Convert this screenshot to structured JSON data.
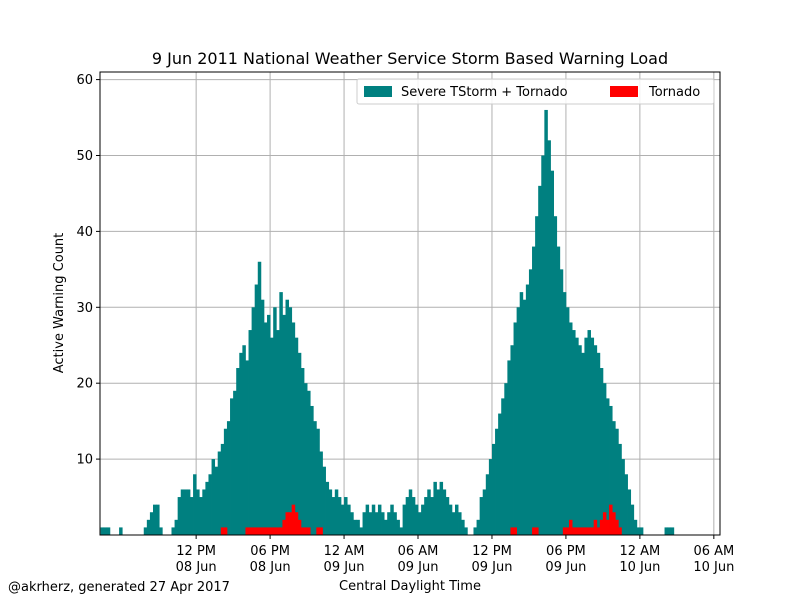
{
  "footer": "@akrherz, generated 27 Apr 2017",
  "colors": {
    "severe": "#008080",
    "tornado": "#ff0000",
    "grid": "#b0b0b0"
  },
  "chart_data": {
    "type": "bar",
    "title": "9 Jun 2011 National Weather Service Storm Based Warning Load",
    "xlabel": "Central Daylight Time",
    "ylabel": "Active Warning Count",
    "x_unit": "hours since 8 Jun 2011 00:00 CDT",
    "xlim": [
      4.2,
      54.5
    ],
    "ylim": [
      0,
      61
    ],
    "yticks": [
      10,
      20,
      30,
      40,
      50,
      60
    ],
    "xticks": [
      {
        "x": 12,
        "line1": "12 PM",
        "line2": "08 Jun"
      },
      {
        "x": 18,
        "line1": "06 PM",
        "line2": "08 Jun"
      },
      {
        "x": 24,
        "line1": "12 AM",
        "line2": "09 Jun"
      },
      {
        "x": 30,
        "line1": "06 AM",
        "line2": "09 Jun"
      },
      {
        "x": 36,
        "line1": "12 PM",
        "line2": "09 Jun"
      },
      {
        "x": 42,
        "line1": "06 PM",
        "line2": "09 Jun"
      },
      {
        "x": 48,
        "line1": "12 AM",
        "line2": "10 Jun"
      },
      {
        "x": 54,
        "line1": "06 AM",
        "line2": "10 Jun"
      }
    ],
    "grid": true,
    "legend_position": "top-right",
    "bin_hours": 0.25,
    "series": [
      {
        "name": "Severe TStorm + Tornado",
        "color": "#008080",
        "points": [
          [
            4.25,
            1
          ],
          [
            4.5,
            1
          ],
          [
            4.75,
            1
          ],
          [
            5.75,
            1
          ],
          [
            7.75,
            1
          ],
          [
            8.0,
            2
          ],
          [
            8.25,
            3
          ],
          [
            8.5,
            4
          ],
          [
            8.75,
            4
          ],
          [
            9.0,
            1
          ],
          [
            10.0,
            1
          ],
          [
            10.25,
            2
          ],
          [
            10.5,
            5
          ],
          [
            10.75,
            6
          ],
          [
            11.0,
            6
          ],
          [
            11.25,
            6
          ],
          [
            11.5,
            5
          ],
          [
            11.75,
            8
          ],
          [
            12.0,
            6
          ],
          [
            12.25,
            5
          ],
          [
            12.5,
            6
          ],
          [
            12.75,
            7
          ],
          [
            13.0,
            8
          ],
          [
            13.25,
            10
          ],
          [
            13.5,
            9
          ],
          [
            13.75,
            11
          ],
          [
            14.0,
            12
          ],
          [
            14.25,
            14
          ],
          [
            14.5,
            15
          ],
          [
            14.75,
            18
          ],
          [
            15.0,
            19
          ],
          [
            15.25,
            22
          ],
          [
            15.5,
            24
          ],
          [
            15.75,
            25
          ],
          [
            16.0,
            23
          ],
          [
            16.25,
            27
          ],
          [
            16.5,
            30
          ],
          [
            16.75,
            33
          ],
          [
            17.0,
            36
          ],
          [
            17.25,
            31
          ],
          [
            17.5,
            28
          ],
          [
            17.75,
            29
          ],
          [
            18.0,
            26
          ],
          [
            18.25,
            30
          ],
          [
            18.5,
            27
          ],
          [
            18.75,
            32
          ],
          [
            19.0,
            29
          ],
          [
            19.25,
            31
          ],
          [
            19.5,
            30
          ],
          [
            19.75,
            28
          ],
          [
            20.0,
            26
          ],
          [
            20.25,
            24
          ],
          [
            20.5,
            22
          ],
          [
            20.75,
            20
          ],
          [
            21.0,
            19
          ],
          [
            21.25,
            17
          ],
          [
            21.5,
            15
          ],
          [
            21.75,
            14
          ],
          [
            22.0,
            11
          ],
          [
            22.25,
            9
          ],
          [
            22.5,
            7
          ],
          [
            22.75,
            6
          ],
          [
            23.0,
            5
          ],
          [
            23.25,
            6
          ],
          [
            23.5,
            5
          ],
          [
            23.75,
            4
          ],
          [
            24.0,
            5
          ],
          [
            24.25,
            4
          ],
          [
            24.5,
            3
          ],
          [
            24.75,
            2
          ],
          [
            25.0,
            2
          ],
          [
            25.25,
            1
          ],
          [
            25.5,
            3
          ],
          [
            25.75,
            4
          ],
          [
            26.0,
            3
          ],
          [
            26.25,
            4
          ],
          [
            26.5,
            3
          ],
          [
            26.75,
            4
          ],
          [
            27.0,
            3
          ],
          [
            27.25,
            2
          ],
          [
            27.5,
            3
          ],
          [
            27.75,
            4
          ],
          [
            28.0,
            3
          ],
          [
            28.25,
            2
          ],
          [
            28.5,
            1
          ],
          [
            28.75,
            4
          ],
          [
            29.0,
            5
          ],
          [
            29.25,
            6
          ],
          [
            29.5,
            5
          ],
          [
            29.75,
            4
          ],
          [
            30.0,
            3
          ],
          [
            30.25,
            4
          ],
          [
            30.5,
            5
          ],
          [
            30.75,
            6
          ],
          [
            31.0,
            5
          ],
          [
            31.25,
            7
          ],
          [
            31.5,
            6
          ],
          [
            31.75,
            7
          ],
          [
            32.0,
            6
          ],
          [
            32.25,
            5
          ],
          [
            32.5,
            4
          ],
          [
            32.75,
            3
          ],
          [
            33.0,
            4
          ],
          [
            33.25,
            3
          ],
          [
            33.5,
            2
          ],
          [
            33.75,
            1
          ],
          [
            34.5,
            1
          ],
          [
            34.75,
            2
          ],
          [
            35.0,
            5
          ],
          [
            35.25,
            6
          ],
          [
            35.5,
            8
          ],
          [
            35.75,
            10
          ],
          [
            36.0,
            12
          ],
          [
            36.25,
            14
          ],
          [
            36.5,
            16
          ],
          [
            36.75,
            18
          ],
          [
            37.0,
            20
          ],
          [
            37.25,
            23
          ],
          [
            37.5,
            25
          ],
          [
            37.75,
            28
          ],
          [
            38.0,
            30
          ],
          [
            38.25,
            32
          ],
          [
            38.5,
            31
          ],
          [
            38.75,
            33
          ],
          [
            39.0,
            35
          ],
          [
            39.25,
            38
          ],
          [
            39.5,
            42
          ],
          [
            39.75,
            46
          ],
          [
            40.0,
            50
          ],
          [
            40.25,
            56
          ],
          [
            40.5,
            52
          ],
          [
            40.75,
            48
          ],
          [
            41.0,
            42
          ],
          [
            41.25,
            38
          ],
          [
            41.5,
            35
          ],
          [
            41.75,
            32
          ],
          [
            42.0,
            30
          ],
          [
            42.25,
            28
          ],
          [
            42.5,
            27
          ],
          [
            42.75,
            26
          ],
          [
            43.0,
            25
          ],
          [
            43.25,
            24
          ],
          [
            43.5,
            26
          ],
          [
            43.75,
            27
          ],
          [
            44.0,
            26
          ],
          [
            44.25,
            25
          ],
          [
            44.5,
            24
          ],
          [
            44.75,
            22
          ],
          [
            45.0,
            20
          ],
          [
            45.25,
            18
          ],
          [
            45.5,
            17
          ],
          [
            45.75,
            15
          ],
          [
            46.0,
            14
          ],
          [
            46.25,
            12
          ],
          [
            46.5,
            10
          ],
          [
            46.75,
            8
          ],
          [
            47.0,
            6
          ],
          [
            47.25,
            4
          ],
          [
            47.5,
            2
          ],
          [
            47.75,
            1
          ],
          [
            48.0,
            1
          ],
          [
            50.0,
            1
          ],
          [
            50.25,
            1
          ],
          [
            50.5,
            1
          ]
        ]
      },
      {
        "name": "Tornado",
        "color": "#ff0000",
        "points": [
          [
            14.0,
            1
          ],
          [
            14.25,
            1
          ],
          [
            16.0,
            1
          ],
          [
            16.25,
            1
          ],
          [
            16.5,
            1
          ],
          [
            16.75,
            1
          ],
          [
            17.0,
            1
          ],
          [
            17.25,
            1
          ],
          [
            17.5,
            1
          ],
          [
            17.75,
            1
          ],
          [
            18.0,
            1
          ],
          [
            18.25,
            1
          ],
          [
            18.5,
            1
          ],
          [
            18.75,
            1
          ],
          [
            19.0,
            2
          ],
          [
            19.25,
            3
          ],
          [
            19.5,
            3
          ],
          [
            19.75,
            4
          ],
          [
            20.0,
            3
          ],
          [
            20.25,
            2
          ],
          [
            20.5,
            1
          ],
          [
            20.75,
            1
          ],
          [
            21.0,
            1
          ],
          [
            21.75,
            1
          ],
          [
            22.0,
            1
          ],
          [
            37.5,
            1
          ],
          [
            37.75,
            1
          ],
          [
            39.25,
            1
          ],
          [
            39.5,
            1
          ],
          [
            41.75,
            1
          ],
          [
            42.0,
            1
          ],
          [
            42.25,
            2
          ],
          [
            42.5,
            1
          ],
          [
            42.75,
            1
          ],
          [
            43.0,
            1
          ],
          [
            43.25,
            1
          ],
          [
            43.5,
            1
          ],
          [
            43.75,
            1
          ],
          [
            44.0,
            1
          ],
          [
            44.25,
            2
          ],
          [
            44.5,
            1
          ],
          [
            44.75,
            2
          ],
          [
            45.0,
            3
          ],
          [
            45.25,
            2
          ],
          [
            45.5,
            4
          ],
          [
            45.75,
            3
          ],
          [
            46.0,
            2
          ],
          [
            46.25,
            1
          ]
        ]
      }
    ]
  }
}
